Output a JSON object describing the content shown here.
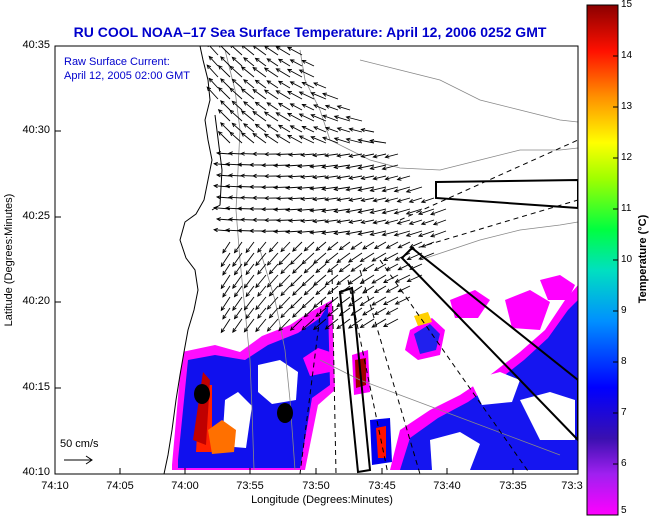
{
  "title": "RU COOL  NOAA–17  Sea Surface Temperature:  April 12, 2006 0252 GMT",
  "annotation": {
    "line1": "Raw Surface Current:",
    "line2": "April 12, 2005 02:00 GMT"
  },
  "scale_label": "50 cm/s",
  "axes": {
    "xlabel": "Longitude (Degrees:Minutes)",
    "ylabel": "Latitude (Degrees:Minutes)",
    "x_ticks": [
      "74:10",
      "74:05",
      "74:00",
      "73:55",
      "73:50",
      "73:45",
      "73:40",
      "73:35",
      "73:3"
    ],
    "y_ticks": [
      "40:35",
      "40:30",
      "40:25",
      "40:20",
      "40:15",
      "40:10"
    ]
  },
  "colorbar": {
    "title": "Temperature (°C)",
    "min": 5,
    "max": 15,
    "ticks": [
      "15",
      "14",
      "13",
      "12",
      "11",
      "10",
      "9",
      "8",
      "7",
      "6",
      "5"
    ]
  },
  "colors": {
    "title_text": "#0000cc",
    "land_fill": "#ffffff",
    "vectors": "#000000"
  },
  "icons": {
    "station_marker": "filled-black-ellipse",
    "scale_arrow": "right-arrow"
  }
}
